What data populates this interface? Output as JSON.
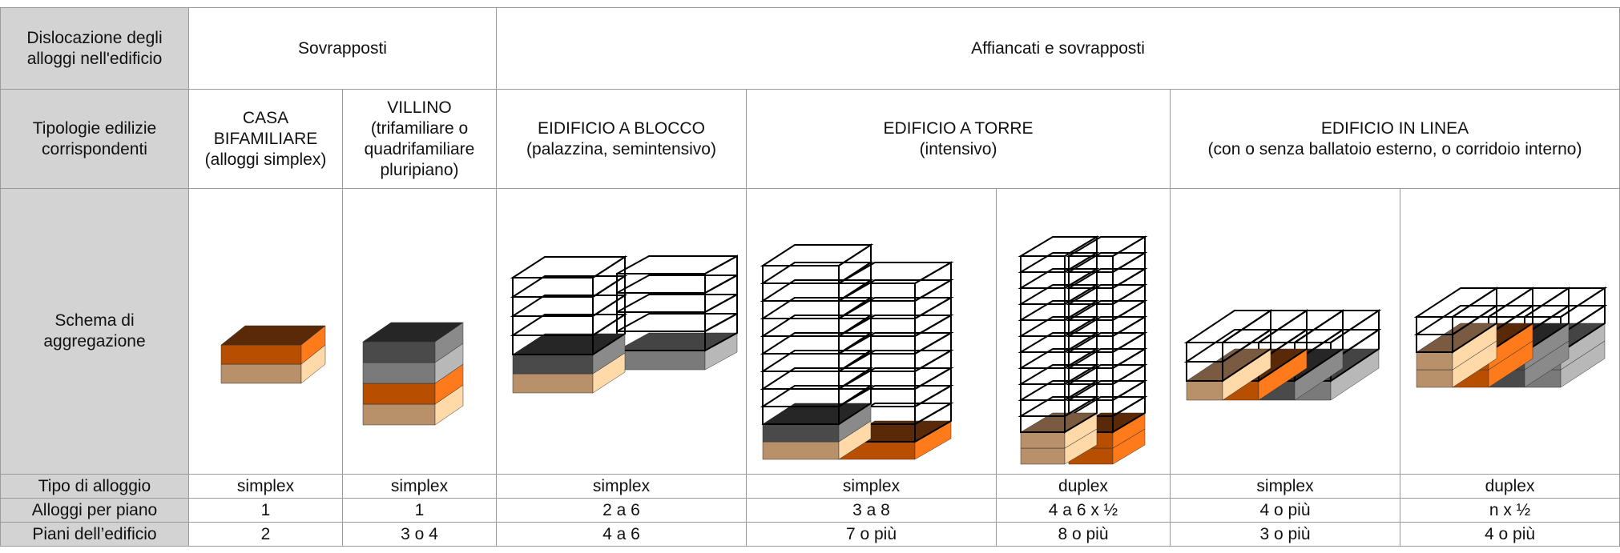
{
  "rows": [
    {
      "header": "Dislocazione degli alloggi nell'edificio",
      "cells": [
        "Sovrapposti",
        "Affiancati e sovrapposti"
      ]
    },
    {
      "header": "Tipologie edilizie corrispondenti",
      "cells": [
        {
          "title": "CASA BIFAMILIARE",
          "subtitle": "(alloggi simplex)"
        },
        {
          "title": "VILLINO",
          "subtitle": "(trifamiliare o quadrifamiliare pluripiano)"
        },
        {
          "title": "EIDIFICIO A BLOCCO",
          "subtitle": "(palazzina, semintensivo)"
        },
        {
          "title": "EDIFICIO A TORRE",
          "subtitle": "(intensivo)"
        },
        {
          "title": "EDIFICIO IN LINEA",
          "subtitle": "(con o senza ballatoio esterno, o corridoio interno)"
        }
      ]
    },
    {
      "header": "Schema di aggregazione"
    },
    {
      "header": "Tipo di alloggio",
      "cells": [
        "simplex",
        "simplex",
        "simplex",
        "simplex",
        "duplex",
        "simplex",
        "duplex"
      ]
    },
    {
      "header": "Alloggi per piano",
      "cells": [
        "1",
        "1",
        "2 a 6",
        "3 a 8",
        "4 a 6 x ½",
        "4 o più",
        "n x ½"
      ]
    },
    {
      "header": "Piani dell’edificio",
      "cells": [
        "2",
        "3 o 4",
        "4 a 6",
        "7 o più",
        "8 o più",
        "3 o più",
        "4 o più"
      ]
    }
  ]
}
